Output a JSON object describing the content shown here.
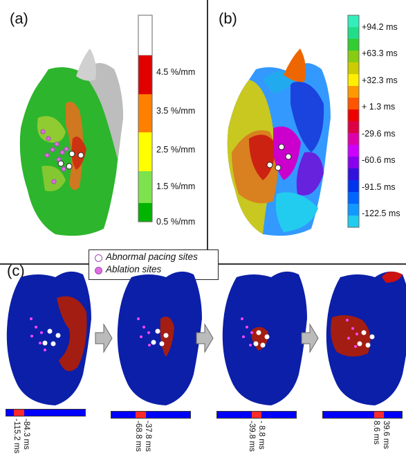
{
  "panels": {
    "a": "(a)",
    "b": "(b)",
    "c": "(c)"
  },
  "colorbar_a": {
    "labels": [
      "4.5 %/mm",
      "3.5 %/mm",
      "2.5 %/mm",
      "1.5 %/mm",
      "0.5 %/mm"
    ],
    "colors": [
      "#ffffff",
      "#e00000",
      "#ff7f00",
      "#ffff00",
      "#33dd33",
      "#00b400"
    ]
  },
  "colorbar_b": {
    "labels": [
      "+94.2 ms",
      "+63.3 ms",
      "+32.3 ms",
      "+ 1.3 ms",
      "-29.6 ms",
      "-60.6 ms",
      "-91.5 ms",
      "-122.5 ms"
    ],
    "colors": [
      "#33eebb",
      "#22dd88",
      "#33cc33",
      "#88cc11",
      "#cccc00",
      "#ffee00",
      "#ff9900",
      "#ff5500",
      "#ee0000",
      "#dd0044",
      "#dd00aa",
      "#cc00ff",
      "#8800ee",
      "#3311dd",
      "#0033ee",
      "#0066ff",
      "#1199ff",
      "#22ccee"
    ]
  },
  "legend": {
    "abnormal": "Abnormal pacing sites",
    "ablation": "Ablation sites"
  },
  "timebars": [
    {
      "left": "-115.2 ms",
      "right": "-84.3 ms",
      "start": 0.1,
      "end": 0.23
    },
    {
      "left": "-68.8 ms",
      "right": "-37.8 ms",
      "start": 0.31,
      "end": 0.44
    },
    {
      "left": "-39.8 ms",
      "right": "- 8.8 ms",
      "start": 0.44,
      "end": 0.56
    },
    {
      "left": "8.6 ms",
      "right": "39.6 ms",
      "start": 0.65,
      "end": 0.77
    }
  ]
}
